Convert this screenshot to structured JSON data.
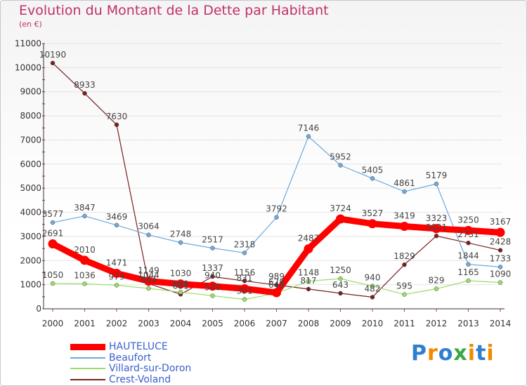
{
  "title": "Evolution du Montant de la Dette par Habitant",
  "subtitle": "(en €)",
  "logo": "Proxiti",
  "chart_data": {
    "type": "line",
    "title": "Evolution du Montant de la Dette par Habitant",
    "ylabel": "(en €)",
    "xlabel": "",
    "ylim": [
      0,
      11000
    ],
    "yticks": [
      0,
      1000,
      2000,
      3000,
      4000,
      5000,
      6000,
      7000,
      8000,
      9000,
      10000,
      11000
    ],
    "x": [
      "2000",
      "2001",
      "2002",
      "2003",
      "2004",
      "2005",
      "2006",
      "2007",
      "2008",
      "2009",
      "2010",
      "2011",
      "2012",
      "2013",
      "2014"
    ],
    "series": [
      {
        "name": "HAUTELUCE",
        "color": "#ff0000",
        "values": [
          2691,
          2010,
          1471,
          1149,
          1030,
          940,
          831,
          670,
          2487,
          3724,
          3527,
          3419,
          3323,
          3250,
          3167
        ]
      },
      {
        "name": "Beaufort",
        "color": "#6fa8dc",
        "values": [
          3577,
          3847,
          3469,
          3064,
          2748,
          2517,
          2318,
          3792,
          7146,
          5952,
          5405,
          4861,
          5179,
          1844,
          1733
        ]
      },
      {
        "name": "Villard-sur-Doron",
        "color": "#99dd66",
        "values": [
          1050,
          1036,
          979,
          844,
          690,
          540,
          391,
          640,
          1148,
          1250,
          940,
          595,
          829,
          1165,
          1090
        ]
      },
      {
        "name": "Crest-Voland",
        "color": "#7a1f1f",
        "values": [
          10190,
          8933,
          7630,
          1044,
          601,
          1337,
          1156,
          989,
          817,
          643,
          482,
          1829,
          3021,
          2731,
          2428
        ]
      }
    ]
  }
}
